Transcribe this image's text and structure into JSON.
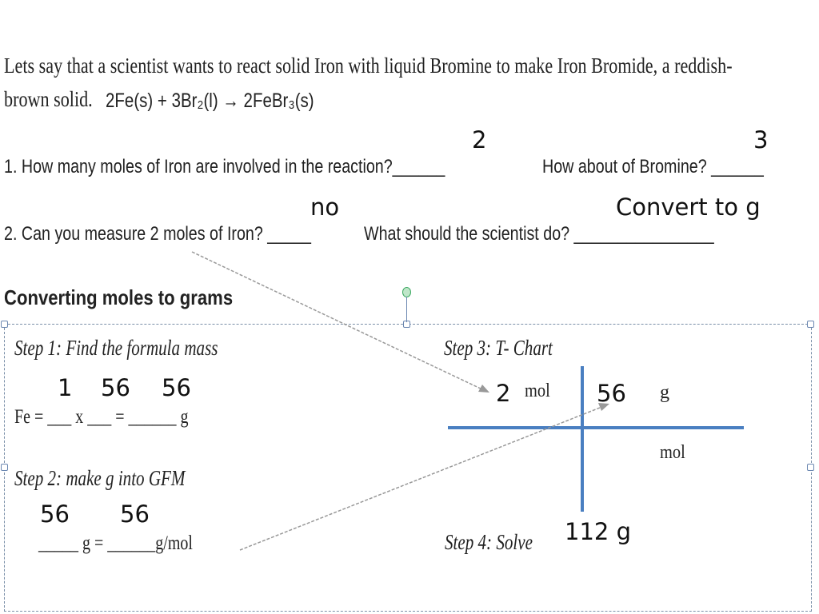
{
  "intro": {
    "line1": "Lets say that a scientist wants to react solid Iron with liquid Bromine to make Iron Bromide, a reddish-",
    "line2": "brown solid.",
    "equation": "2Fe(s) + 3Br₂(l) → 2FeBr₃(s)"
  },
  "question1": {
    "text": "1. How many moles of Iron are involved in the reaction?______",
    "text2": "How about of Bromine? ______",
    "answer_iron": "2",
    "answer_bromine": "3"
  },
  "question2": {
    "text": "2. Can you measure 2 moles of Iron? _____",
    "text2": "What should the scientist do? ________________",
    "answer_measure": "no",
    "answer_do": "Convert to g"
  },
  "section_heading": "Converting moles to grams",
  "step1": {
    "title": "Step 1: Find the formula mass",
    "formula": "Fe = ___ x ___ = ______ g",
    "answers": [
      "1",
      "56",
      "56"
    ]
  },
  "step2": {
    "title": "Step 2: make g into GFM",
    "formula": "_____ g = ______g/mol",
    "answers": [
      "56",
      "56"
    ]
  },
  "step3": {
    "title": "Step 3: T- Chart",
    "top_left_value": "2",
    "top_left_unit": "mol",
    "top_right_value": "56",
    "top_right_unit": "g",
    "bottom_right_unit": "mol"
  },
  "step4": {
    "title": "Step 4: Solve",
    "answer": "112 g"
  },
  "colors": {
    "t_chart": "#4a7fc1",
    "handle": "#3aa860",
    "box_border": "#7a8fa8"
  }
}
